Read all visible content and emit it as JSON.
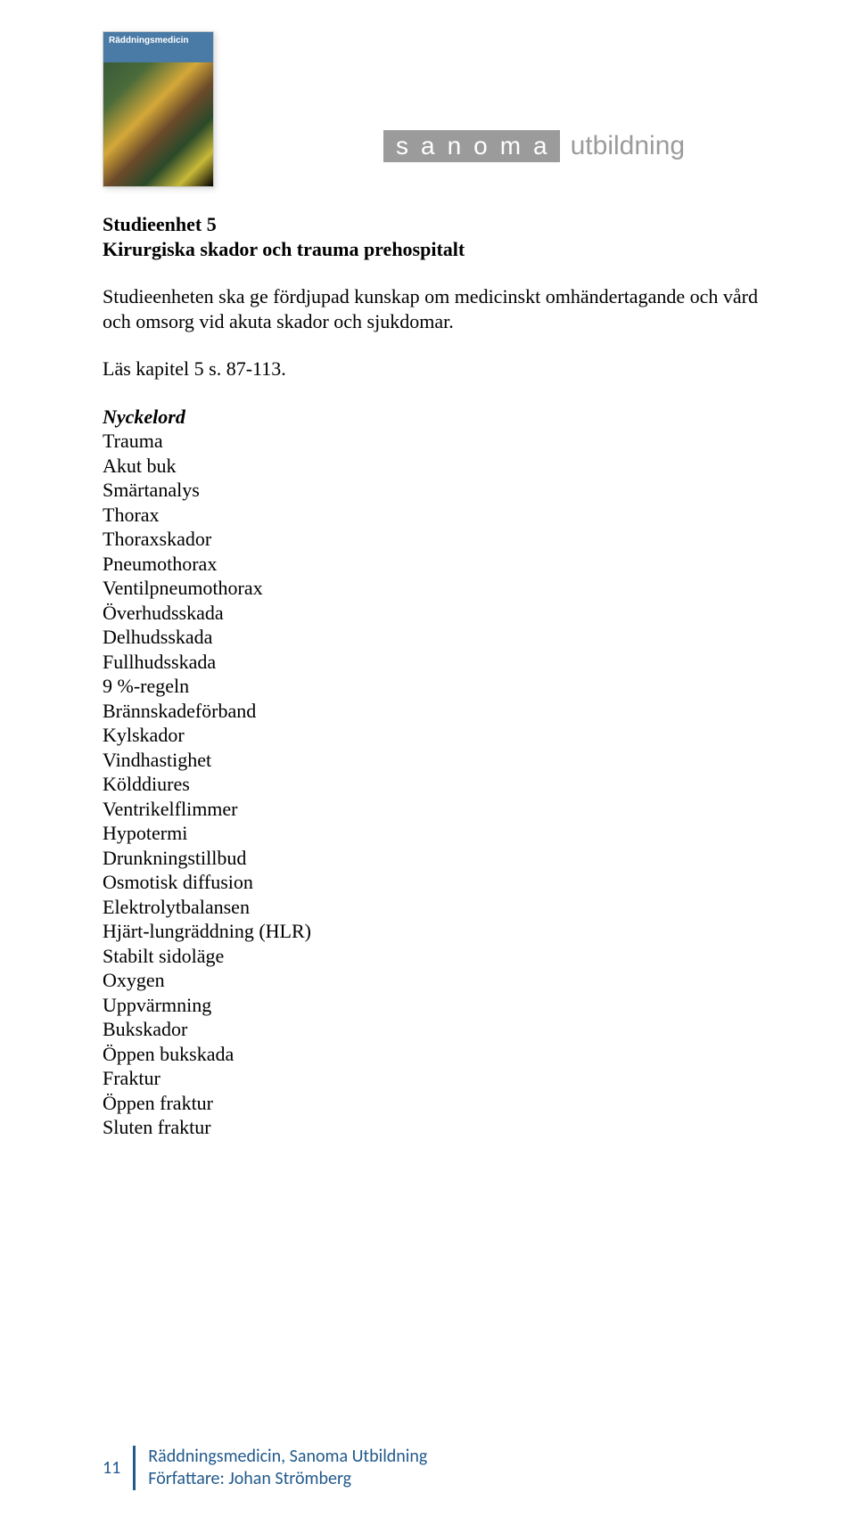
{
  "cover": {
    "title": "Räddningsmedicin"
  },
  "brand": {
    "box": "sanoma",
    "text": "utbildning"
  },
  "unit": {
    "heading1": "Studieenhet 5",
    "heading2": "Kirurgiska skador och trauma prehospitalt",
    "intro": "Studieenheten ska ge fördjupad kunskap om medicinskt omhändertagande och vård och omsorg vid akuta skador och sjukdomar.",
    "reading": "Läs kapitel 5 s. 87-113."
  },
  "keywords": {
    "heading": "Nyckelord",
    "items": [
      "Trauma",
      "Akut buk",
      "Smärtanalys",
      "Thorax",
      "Thoraxskador",
      "Pneumothorax",
      "Ventilpneumothorax",
      "Överhudsskada",
      "Delhudsskada",
      "Fullhudsskada",
      "9 %-regeln",
      "Brännskadeförband",
      "Kylskador",
      "Vindhastighet",
      "Kölddiures",
      "Ventrikelflimmer",
      "Hypotermi",
      "Drunkningstillbud",
      "Osmotisk diffusion",
      "Elektrolytbalansen",
      "Hjärt-lungräddning (HLR)",
      "Stabilt sidoläge",
      "Oxygen",
      "Uppvärmning",
      "Bukskador",
      "Öppen bukskada",
      "Fraktur",
      "Öppen fraktur",
      "Sluten fraktur"
    ]
  },
  "footer": {
    "page": "11",
    "line1": "Räddningsmedicin, Sanoma Utbildning",
    "line2": "Författare: Johan Strömberg"
  }
}
